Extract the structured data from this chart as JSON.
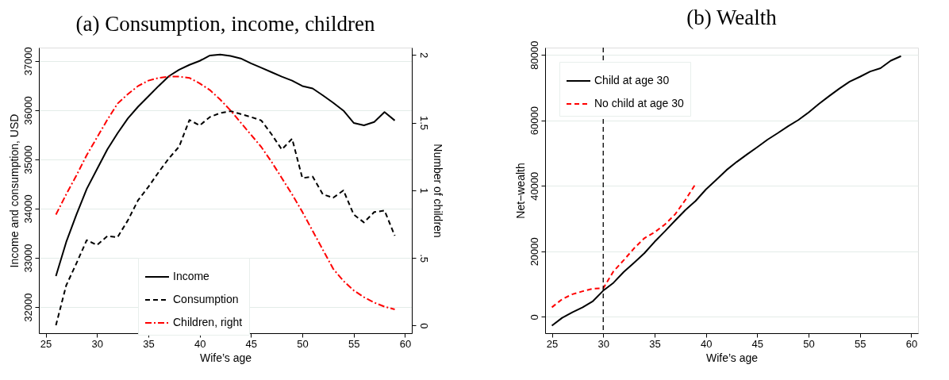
{
  "chart_data": [
    {
      "type": "line",
      "title": "(a) Consumption, income, children",
      "xlabel": "Wife’s age",
      "ylabel": "Income and consumption, USD",
      "y2label": "Number of children",
      "xlim": [
        24.34,
        60.66
      ],
      "xticks": [
        25,
        30,
        35,
        40,
        45,
        50,
        55,
        60
      ],
      "ylim": [
        31470,
        37270
      ],
      "yticks": [
        32000,
        33000,
        34000,
        35000,
        36000,
        37000
      ],
      "y2lim": [
        -0.056,
        2.054
      ],
      "y2ticks": [
        0,
        {
          "value": 0.5,
          "label": ".5"
        },
        1,
        1.5,
        2
      ],
      "grid": "y",
      "legend": "bottom",
      "series": [
        {
          "name": "Income",
          "color": "#000000",
          "line_style": "solid",
          "x": [
            26,
            27,
            28,
            29,
            30,
            31,
            32,
            33,
            34,
            35,
            36,
            37,
            38,
            39,
            40,
            41,
            42,
            43,
            44,
            45,
            46,
            47,
            48,
            49,
            50,
            51,
            52,
            53,
            54,
            55,
            56,
            57,
            58,
            59
          ],
          "values": [
            32630,
            33320,
            33880,
            34400,
            34800,
            35200,
            35530,
            35830,
            36070,
            36280,
            36490,
            36690,
            36820,
            36920,
            37000,
            37110,
            37130,
            37100,
            37050,
            36950,
            36860,
            36770,
            36680,
            36600,
            36490,
            36440,
            36300,
            36150,
            35990,
            35740,
            35690,
            35760,
            35960,
            35790
          ]
        },
        {
          "name": "Consumption",
          "color": "#000000",
          "line_style": "dashed",
          "x": [
            26,
            27,
            28,
            29,
            30,
            31,
            32,
            33,
            34,
            35,
            36,
            37,
            38,
            39,
            40,
            41,
            42,
            43,
            44,
            45,
            46,
            47,
            48,
            49,
            50,
            51,
            52,
            53,
            54,
            55,
            56,
            57,
            58,
            59
          ],
          "values": [
            31630,
            32440,
            32890,
            33360,
            33260,
            33440,
            33420,
            33760,
            34170,
            34440,
            34740,
            35020,
            35260,
            35800,
            35690,
            35860,
            35940,
            35980,
            35920,
            35860,
            35790,
            35510,
            35200,
            35420,
            34620,
            34650,
            34290,
            34220,
            34370,
            33880,
            33720,
            33930,
            33960,
            33450
          ]
        },
        {
          "name": "Children, right",
          "color": "#ff0000",
          "line_style": "dashdot",
          "axis": "y2",
          "x": [
            26,
            27,
            28,
            29,
            30,
            31,
            32,
            33,
            34,
            35,
            36,
            37,
            38,
            39,
            40,
            41,
            42,
            43,
            44,
            45,
            46,
            47,
            48,
            49,
            50,
            51,
            52,
            53,
            54,
            55,
            56,
            57,
            58,
            59
          ],
          "values": [
            0.82,
            0.97,
            1.11,
            1.26,
            1.39,
            1.52,
            1.64,
            1.71,
            1.77,
            1.81,
            1.83,
            1.84,
            1.84,
            1.83,
            1.79,
            1.74,
            1.67,
            1.59,
            1.5,
            1.41,
            1.32,
            1.21,
            1.09,
            0.97,
            0.84,
            0.7,
            0.56,
            0.42,
            0.33,
            0.26,
            0.21,
            0.17,
            0.14,
            0.12
          ]
        }
      ]
    },
    {
      "type": "line",
      "title": "(b) Wealth",
      "xlabel": "Wife’s age",
      "ylabel": "Net−wealth",
      "xlim": [
        24.34,
        60.66
      ],
      "xticks": [
        25,
        30,
        35,
        40,
        45,
        50,
        55,
        60
      ],
      "ylim": [
        -5000,
        82200
      ],
      "yticks": [
        0,
        20000,
        40000,
        60000,
        80000
      ],
      "grid": "y",
      "legend": "top left",
      "ref_lines": [
        {
          "axis": "x",
          "value": 30,
          "color": "#000000",
          "line_style": "dashed"
        }
      ],
      "series": [
        {
          "name": "Child at age 30",
          "color": "#000000",
          "line_style": "solid",
          "x": [
            25,
            26,
            27,
            28,
            29,
            30,
            31,
            32,
            33,
            34,
            35,
            36,
            37,
            38,
            39,
            40,
            41,
            42,
            43,
            44,
            45,
            46,
            47,
            48,
            49,
            50,
            51,
            52,
            53,
            54,
            55,
            56,
            57,
            58,
            59
          ],
          "values": [
            -2700,
            -300,
            1400,
            2900,
            4800,
            8000,
            10400,
            13700,
            16500,
            19400,
            22900,
            26100,
            29400,
            32600,
            35400,
            38900,
            41800,
            44800,
            47300,
            49600,
            51800,
            54100,
            56100,
            58200,
            60100,
            62400,
            65000,
            67400,
            69700,
            71800,
            73300,
            74900,
            75900,
            78200,
            79600
          ]
        },
        {
          "name": "No child at age 30",
          "color": "#ff0000",
          "line_style": "dashed",
          "x": [
            25,
            26,
            27,
            28,
            29,
            30,
            31,
            32,
            33,
            34,
            35,
            36,
            37,
            38,
            39
          ],
          "values": [
            2900,
            5400,
            6900,
            7800,
            8600,
            8700,
            13900,
            17300,
            20900,
            24000,
            25800,
            28200,
            31300,
            35700,
            40600
          ]
        }
      ]
    }
  ]
}
